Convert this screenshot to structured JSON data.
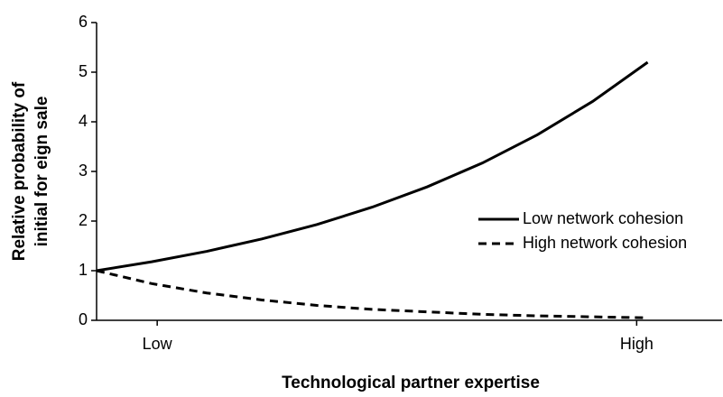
{
  "chart_data": {
    "type": "line",
    "ylabel": [
      "Relative probability of",
      "initial for eign sale"
    ],
    "xlabel": "Technological partner expertise",
    "x": [
      0,
      0.1,
      0.2,
      0.3,
      0.4,
      0.5,
      0.6,
      0.7,
      0.8,
      0.9,
      1.0
    ],
    "series": [
      {
        "name": "Low network cohesion",
        "color": "#000000",
        "dash": false,
        "values": [
          1,
          1.18,
          1.39,
          1.64,
          1.93,
          2.28,
          2.69,
          3.17,
          3.74,
          4.41,
          5.2
        ]
      },
      {
        "name": "High network cohesion",
        "color": "#000000",
        "dash": true,
        "values": [
          1,
          0.74,
          0.55,
          0.41,
          0.3,
          0.22,
          0.17,
          0.12,
          0.09,
          0.07,
          0.05
        ]
      }
    ],
    "xlim": [
      0,
      1.135
    ],
    "xticks": [
      {
        "value": 0.11,
        "label": "Low"
      },
      {
        "value": 0.98,
        "label": "High"
      }
    ],
    "ylim": [
      0,
      6
    ],
    "yticks": [
      0,
      1,
      2,
      3,
      4,
      5,
      6
    ],
    "grid": false,
    "legend": "right"
  }
}
